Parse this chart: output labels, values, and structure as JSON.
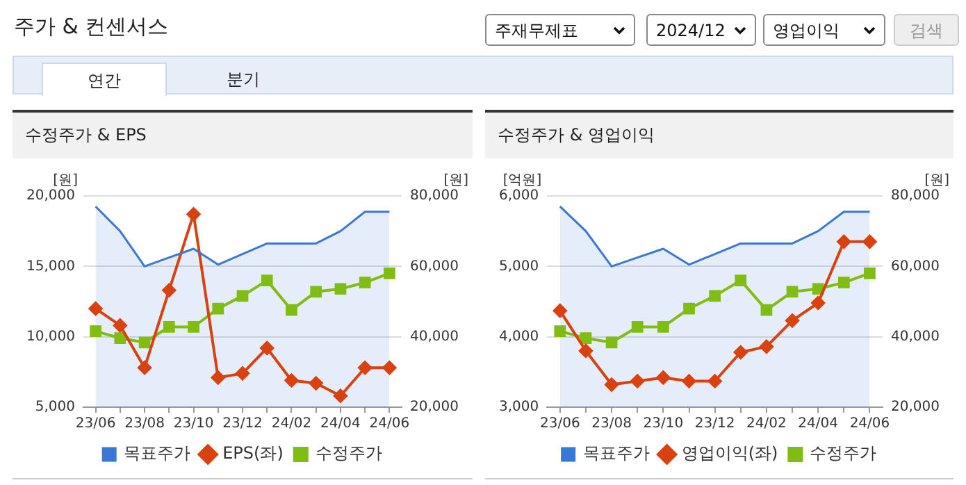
{
  "chart_data": [
    {
      "type": "other",
      "title": "주가 & 컨센서스",
      "annotations": [
        "주재무제표",
        "2024/12",
        "영업이익",
        "검색",
        "연간",
        "분기"
      ]
    },
    {
      "type": "line",
      "title": "수정주가 & EPS",
      "ylabel": "[원]",
      "y2label": "[원]",
      "categories": [
        "23/06",
        null,
        "23/08",
        null,
        "23/10",
        null,
        "23/12",
        null,
        "24/02",
        null,
        "24/04",
        null,
        "24/06"
      ],
      "series": [
        {
          "name": "목표주가",
          "type": "area",
          "axis": "y2",
          "color": "#3a78d8",
          "values": [
            77000,
            70000,
            60000,
            62500,
            65000,
            60500,
            63500,
            66500,
            66500,
            66500,
            70000,
            75500,
            75500
          ]
        },
        {
          "name": "EPS(좌)",
          "type": "line",
          "axis": "y",
          "marker": "diamond",
          "color": "#d9420f",
          "values": [
            12000,
            10800,
            7800,
            13300,
            18700,
            7100,
            7400,
            9200,
            6900,
            6700,
            5800,
            7800,
            7800
          ]
        },
        {
          "name": "수정주가",
          "type": "line",
          "axis": "y2",
          "marker": "square",
          "color": "#80bc12",
          "values": [
            41600,
            39600,
            38400,
            42800,
            42800,
            48000,
            51600,
            56000,
            47600,
            52800,
            53600,
            55400,
            58000
          ]
        }
      ],
      "ylim": [
        5000,
        20000
      ],
      "yticks": [
        {
          "value": 5000,
          "label": "5,000"
        },
        {
          "value": 10000,
          "label": "10,000"
        },
        {
          "value": 15000,
          "label": "15,000"
        },
        {
          "value": 20000,
          "label": "20,000"
        }
      ],
      "y2lim": [
        20000,
        80000
      ],
      "y2ticks": [
        {
          "value": 20000,
          "label": "20,000"
        },
        {
          "value": 40000,
          "label": "40,000"
        },
        {
          "value": 60000,
          "label": "60,000"
        },
        {
          "value": 80000,
          "label": "80,000"
        }
      ],
      "grid": "y",
      "legend": "bottom"
    },
    {
      "type": "line",
      "title": "수정주가 & 영업이익",
      "ylabel": "[억원]",
      "y2label": "[원]",
      "categories": [
        "23/06",
        null,
        "23/08",
        null,
        "23/10",
        null,
        "23/12",
        null,
        "24/02",
        null,
        "24/04",
        null,
        "24/06"
      ],
      "series": [
        {
          "name": "목표주가",
          "type": "area",
          "axis": "y2",
          "color": "#3a78d8",
          "values": [
            77000,
            70000,
            60000,
            62500,
            65000,
            60500,
            63500,
            66500,
            66500,
            66500,
            70000,
            75500,
            75500
          ]
        },
        {
          "name": "영업이익(좌)",
          "type": "line",
          "axis": "y",
          "marker": "diamond",
          "color": "#d9420f",
          "values": [
            4370,
            3800,
            3320,
            3370,
            3420,
            3370,
            3370,
            3780,
            3860,
            4230,
            4480,
            5350,
            5350
          ]
        },
        {
          "name": "수정주가",
          "type": "line",
          "axis": "y2",
          "marker": "square",
          "color": "#80bc12",
          "values": [
            41600,
            39600,
            38400,
            42800,
            42800,
            48000,
            51600,
            56000,
            47600,
            52800,
            53600,
            55400,
            58000
          ]
        }
      ],
      "ylim": [
        3000,
        6000
      ],
      "yticks": [
        {
          "value": 3000,
          "label": "3,000"
        },
        {
          "value": 4000,
          "label": "4,000"
        },
        {
          "value": 5000,
          "label": "5,000"
        },
        {
          "value": 6000,
          "label": "6,000"
        }
      ],
      "y2lim": [
        20000,
        80000
      ],
      "y2ticks": [
        {
          "value": 20000,
          "label": "20,000"
        },
        {
          "value": 40000,
          "label": "40,000"
        },
        {
          "value": 60000,
          "label": "60,000"
        },
        {
          "value": 80000,
          "label": "80,000"
        }
      ],
      "grid": "y",
      "legend": "bottom"
    }
  ]
}
